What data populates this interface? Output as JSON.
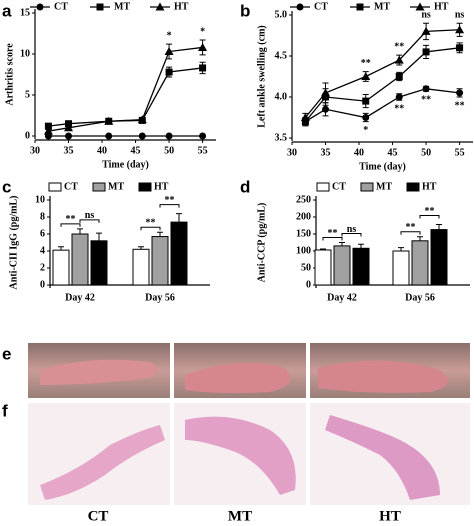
{
  "chart_data": [
    {
      "type": "line",
      "panel": "a",
      "xlabel": "Time (day)",
      "ylabel": "Arthritis score",
      "x": [
        32,
        35,
        41,
        46,
        50,
        55
      ],
      "xlim": [
        30,
        57
      ],
      "xticks": [
        30,
        35,
        40,
        45,
        50,
        55
      ],
      "ylim": [
        0,
        15
      ],
      "yticks": [
        0,
        5,
        10,
        15
      ],
      "series": [
        {
          "name": "CT",
          "color": "#000000",
          "marker": "circle",
          "values": [
            0,
            0,
            0,
            0,
            0,
            0
          ],
          "errors": [
            0,
            0,
            0,
            0,
            0,
            0
          ]
        },
        {
          "name": "MT",
          "color": "#000000",
          "marker": "square",
          "values": [
            1.2,
            1.5,
            1.8,
            1.9,
            7.8,
            8.3
          ],
          "errors": [
            0.2,
            0.2,
            0.2,
            0.2,
            0.6,
            0.7
          ]
        },
        {
          "name": "HT",
          "color": "#000000",
          "marker": "triangle",
          "values": [
            0.6,
            1.0,
            1.8,
            2.0,
            10.3,
            10.8
          ],
          "errors": [
            0.2,
            0.2,
            0.2,
            0.2,
            0.9,
            0.9
          ]
        }
      ],
      "significance_top": [
        null,
        null,
        null,
        null,
        "*",
        "*"
      ]
    },
    {
      "type": "line",
      "panel": "b",
      "xlabel": "Time (day)",
      "ylabel": "Left ankle swelling (cm)",
      "x": [
        32,
        35,
        41,
        46,
        50,
        55
      ],
      "xlim": [
        30,
        57
      ],
      "xticks": [
        30,
        35,
        40,
        45,
        50,
        55
      ],
      "ylim": [
        3.5,
        5.0
      ],
      "yticks": [
        3.5,
        {
          "value": 4,
          "label": "4.0"
        },
        4.5,
        {
          "value": 5,
          "label": "5.0"
        }
      ],
      "series": [
        {
          "name": "CT",
          "color": "#000000",
          "marker": "circle",
          "values": [
            3.7,
            3.85,
            3.75,
            4.0,
            4.1,
            4.05
          ],
          "errors": [
            0.05,
            0.08,
            0.05,
            0.04,
            0.03,
            0.05
          ]
        },
        {
          "name": "MT",
          "color": "#000000",
          "marker": "square",
          "values": [
            3.7,
            4.0,
            3.95,
            4.25,
            4.55,
            4.6
          ],
          "errors": [
            0.05,
            0.1,
            0.08,
            0.05,
            0.08,
            0.06
          ]
        },
        {
          "name": "HT",
          "color": "#000000",
          "marker": "triangle",
          "values": [
            3.75,
            4.05,
            4.25,
            4.45,
            4.8,
            4.82
          ],
          "errors": [
            0.05,
            0.12,
            0.06,
            0.06,
            0.1,
            0.08
          ]
        }
      ],
      "significance_top": [
        null,
        null,
        "**",
        "**",
        "ns",
        "ns"
      ],
      "significance_bottom": [
        null,
        null,
        "*",
        "**",
        "**",
        "**"
      ]
    },
    {
      "type": "bar",
      "panel": "c",
      "ylabel": "Anti-CII IgG (pg/mL)",
      "categories": [
        "Day 42",
        "Day 56"
      ],
      "ylim": [
        0,
        10
      ],
      "yticks": [
        0,
        2,
        4,
        6,
        8,
        10
      ],
      "series": [
        {
          "name": "CT",
          "color": "#ffffff",
          "values": [
            4.1,
            4.2
          ],
          "errors": [
            0.4,
            0.3
          ]
        },
        {
          "name": "MT",
          "color": "#a0a0a0",
          "values": [
            6.0,
            5.7
          ],
          "errors": [
            0.6,
            0.5
          ]
        },
        {
          "name": "HT",
          "color": "#000000",
          "values": [
            5.2,
            7.4
          ],
          "errors": [
            0.9,
            1.0
          ]
        }
      ],
      "significance": [
        [
          "**",
          "ns"
        ],
        [
          "**",
          "**"
        ]
      ]
    },
    {
      "type": "bar",
      "panel": "d",
      "ylabel": "Anti-CCP (pg/mL)",
      "categories": [
        "Day 42",
        "Day 56"
      ],
      "ylim": [
        0,
        250
      ],
      "yticks": [
        0,
        50,
        100,
        150,
        200,
        250
      ],
      "series": [
        {
          "name": "CT",
          "color": "#ffffff",
          "values": [
            103,
            100
          ],
          "errors": [
            3,
            10
          ]
        },
        {
          "name": "MT",
          "color": "#a0a0a0",
          "values": [
            115,
            130
          ],
          "errors": [
            10,
            12
          ]
        },
        {
          "name": "HT",
          "color": "#000000",
          "values": [
            108,
            163
          ],
          "errors": [
            12,
            15
          ]
        }
      ],
      "significance": [
        [
          "**",
          "ns"
        ],
        [
          "**",
          "**"
        ]
      ]
    }
  ],
  "images": {
    "panels": [
      "e",
      "f"
    ],
    "groups": [
      "CT",
      "MT",
      "HT"
    ]
  }
}
